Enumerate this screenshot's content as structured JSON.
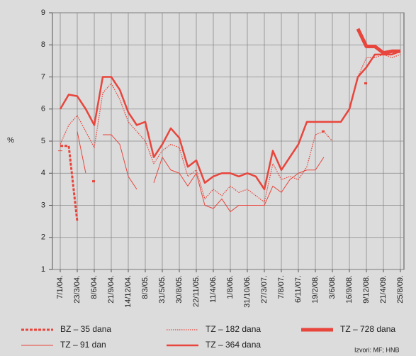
{
  "chart_data": {
    "type": "line",
    "y_label": "%",
    "source": "Izvori: MF; HNB",
    "categories": [
      "7/1/04.",
      null,
      "23/3/04.",
      null,
      "8/6/04.",
      null,
      "21/9/04.",
      null,
      "14/12/04.",
      null,
      "8/3/05.",
      null,
      "31/5/05.",
      null,
      "30/8/05.",
      null,
      "22/11/05.",
      null,
      "11/4/06.",
      null,
      "1/8/06.",
      null,
      "31/10/06.",
      null,
      "27/3/07.",
      null,
      "7/8/07.",
      null,
      "6/11/07.",
      null,
      "19/2/08.",
      null,
      "3/6/08.",
      null,
      "16/9/08.",
      null,
      "9/12/08.",
      null,
      "21/4/09.",
      null,
      "25/8/09."
    ],
    "ylim": [
      1,
      9
    ],
    "yticks": [
      1,
      2,
      3,
      4,
      5,
      6,
      7,
      8,
      9
    ],
    "grid": true,
    "series": [
      {
        "name": "BZ – 35 dana",
        "color": "#e8453c",
        "line_width": 3,
        "line_style": "dashed",
        "values": [
          4.85,
          4.85,
          2.5,
          null,
          3.75,
          null,
          null,
          null,
          null,
          null,
          null,
          null,
          null,
          null,
          null,
          null,
          null,
          null,
          null,
          null,
          null,
          null,
          null,
          null,
          null,
          null,
          null,
          null,
          null,
          null,
          null,
          5.3,
          null,
          null,
          null,
          null,
          6.8,
          null,
          null,
          null,
          null
        ]
      },
      {
        "name": "TZ – 182 dana",
        "color": "#e8453c",
        "line_width": 1.3,
        "line_style": "dotted",
        "values": [
          4.9,
          5.5,
          5.8,
          5.3,
          4.8,
          6.5,
          6.8,
          6.3,
          5.6,
          5.3,
          5.0,
          4.3,
          4.7,
          4.9,
          4.8,
          3.9,
          4.1,
          3.2,
          3.5,
          3.3,
          3.6,
          3.4,
          3.5,
          3.3,
          3.1,
          4.3,
          3.8,
          3.9,
          3.8,
          4.2,
          5.2,
          5.3,
          5.0,
          null,
          6.0,
          7.0,
          7.6,
          7.6,
          7.7,
          7.6,
          7.7
        ]
      },
      {
        "name": "TZ – 728 dana",
        "color": "#e8453c",
        "line_width": 5,
        "line_style": "solid",
        "values": [
          null,
          null,
          null,
          null,
          null,
          null,
          null,
          null,
          null,
          null,
          null,
          null,
          null,
          null,
          null,
          null,
          null,
          null,
          null,
          null,
          null,
          null,
          null,
          null,
          null,
          null,
          null,
          null,
          null,
          null,
          null,
          null,
          null,
          null,
          null,
          8.5,
          7.95,
          7.95,
          7.75,
          7.8,
          7.8
        ]
      },
      {
        "name": "TZ – 91 dan",
        "color": "#e8453c",
        "line_width": 1,
        "line_style": "solid",
        "values": [
          4.7,
          null,
          5.3,
          4.0,
          null,
          5.2,
          5.2,
          4.9,
          3.9,
          3.5,
          null,
          3.7,
          4.5,
          4.1,
          4.0,
          3.6,
          4.0,
          3.0,
          2.9,
          3.2,
          2.8,
          3.0,
          3.0,
          3.0,
          3.0,
          3.6,
          3.4,
          3.8,
          4.0,
          4.1,
          4.1,
          4.5,
          null,
          null,
          null,
          null,
          null,
          null,
          null,
          null,
          null
        ]
      },
      {
        "name": "TZ – 364 dana",
        "color": "#e8453c",
        "line_width": 2.5,
        "line_style": "solid",
        "values": [
          6.0,
          6.45,
          6.4,
          6.0,
          5.5,
          7.0,
          7.0,
          6.6,
          5.9,
          5.5,
          5.6,
          4.5,
          4.9,
          5.4,
          5.1,
          4.2,
          4.4,
          3.7,
          3.9,
          4.0,
          4.0,
          3.9,
          4.0,
          3.9,
          3.5,
          4.7,
          4.1,
          4.5,
          4.9,
          5.6,
          5.6,
          5.6,
          5.6,
          5.6,
          6.0,
          7.0,
          7.3,
          7.7,
          7.7,
          7.7,
          7.8
        ]
      }
    ]
  }
}
